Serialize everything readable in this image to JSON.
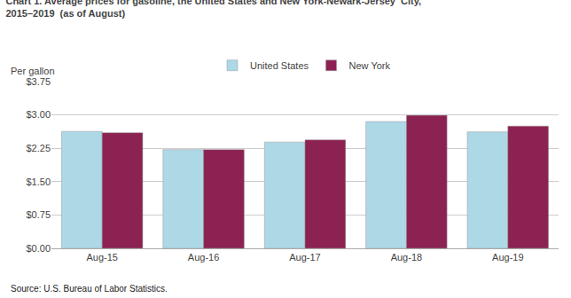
{
  "chart_data": {
    "type": "bar",
    "title": "Chart 1. Average prices for gasoline, the United States and New York-Newark-Jersey  City,\n2015–2019  (as of August)",
    "ylabel": "Per gallon",
    "annotations": [
      "Source: U.S. Bureau of Labor Statistics."
    ],
    "categories": [
      "Aug-15",
      "Aug-16",
      "Aug-17",
      "Aug-18",
      "Aug-19"
    ],
    "series": [
      {
        "name": "United States",
        "color": "#ADD8E6",
        "values": [
          2.63,
          2.22,
          2.39,
          2.85,
          2.62
        ]
      },
      {
        "name": "New York",
        "color": "#8B2252",
        "values": [
          2.6,
          2.22,
          2.44,
          2.99,
          2.75
        ]
      }
    ],
    "ylim": [
      0,
      3.75
    ],
    "yticks": [
      {
        "value": 0.0,
        "label": "$0.00"
      },
      {
        "value": 0.75,
        "label": "$0.75"
      },
      {
        "value": 1.5,
        "label": "$1.50"
      },
      {
        "value": 2.25,
        "label": "$2.25"
      },
      {
        "value": 3.0,
        "label": "$3.00"
      },
      {
        "value": 3.75,
        "label": "$3.75"
      }
    ],
    "grid": true,
    "legend": "top"
  }
}
